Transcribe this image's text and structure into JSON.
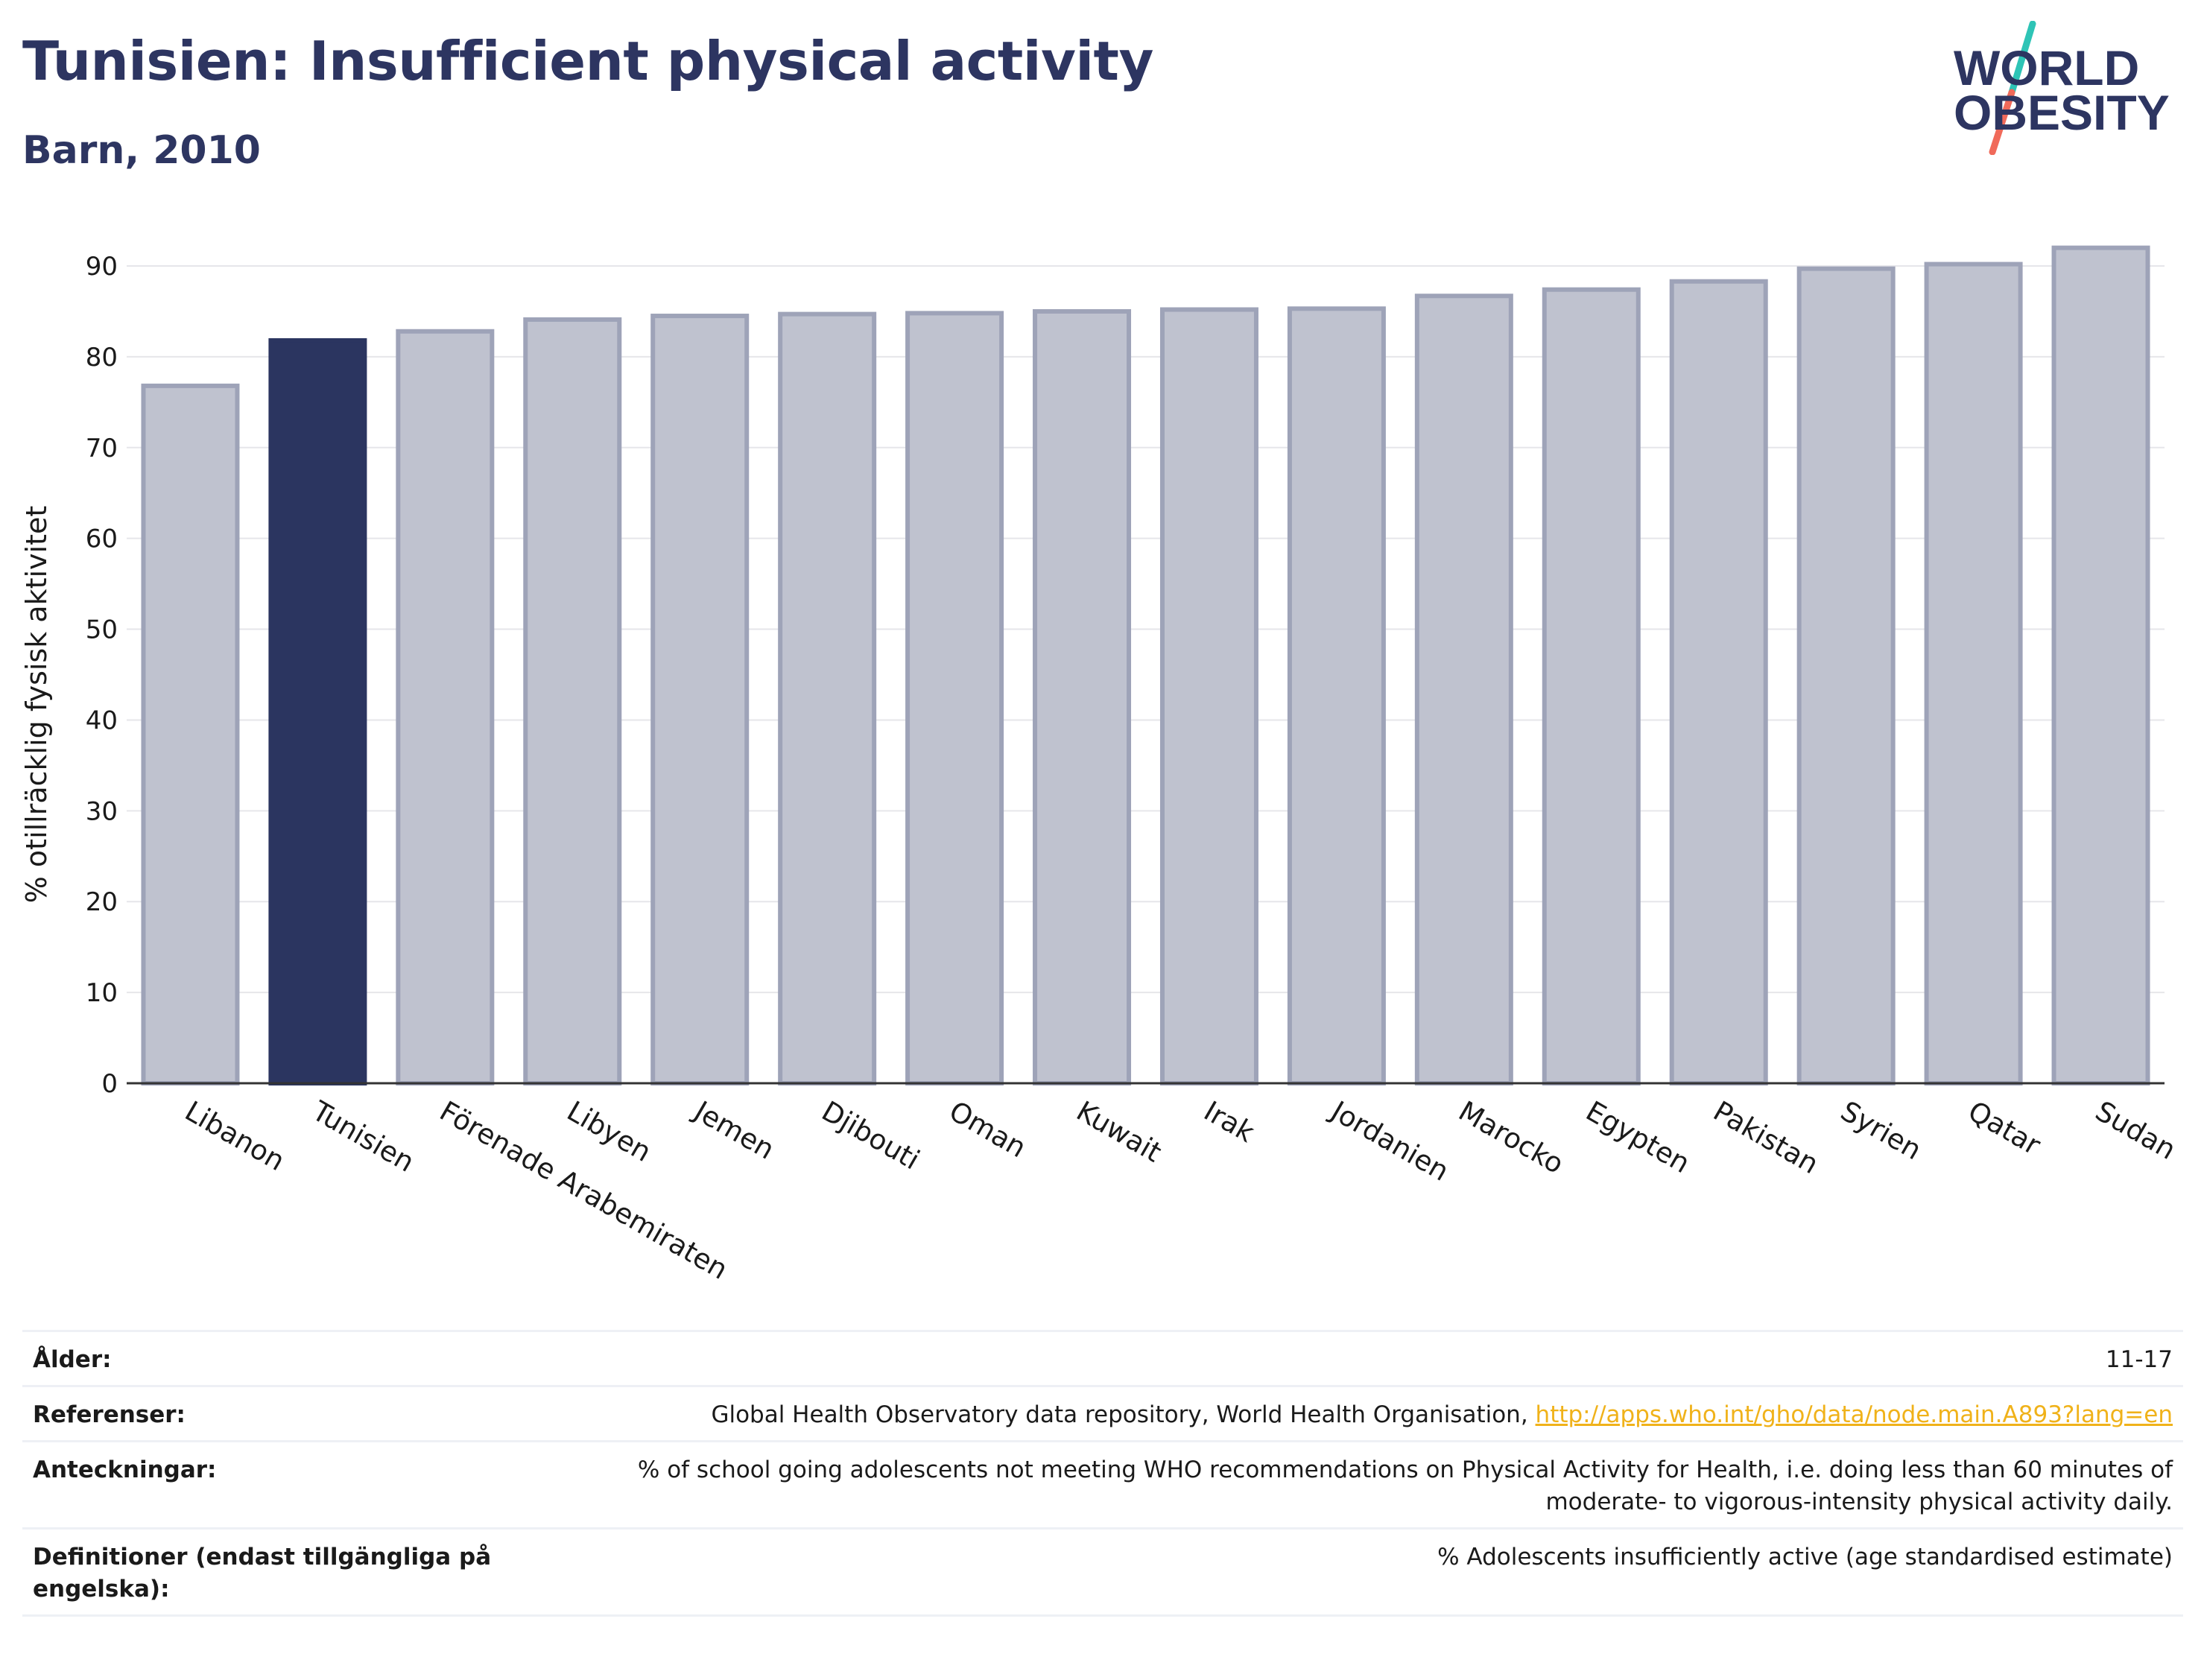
{
  "header": {
    "title": "Tunisien: Insufficient physical activity",
    "subtitle": "Barn, 2010"
  },
  "logo": {
    "line1": "WORLD",
    "line2": "OBESITY",
    "slash_colors": [
      "#2ec4b6",
      "#f06a5a"
    ]
  },
  "colors": {
    "highlight_bar": "#2b3560",
    "other_bar_fill": "#bfc2cf",
    "other_bar_stroke": "#9ea3b8",
    "text": "#2d3561",
    "link": "#f0b21a"
  },
  "chart_data": {
    "type": "bar",
    "title": "Tunisien: Insufficient physical activity",
    "subtitle": "Barn, 2010",
    "xlabel": "",
    "ylabel": "% otillräcklig fysisk aktivitet",
    "ylim": [
      0,
      93
    ],
    "yticks": [
      0,
      10,
      20,
      30,
      40,
      50,
      60,
      70,
      80,
      90
    ],
    "grid": true,
    "highlight": "Tunisien",
    "categories": [
      "Libanon",
      "Tunisien",
      "Förenade Arabemiraten",
      "Libyen",
      "Jemen",
      "Djibouti",
      "Oman",
      "Kuwait",
      "Irak",
      "Jordanien",
      "Marocko",
      "Egypten",
      "Pakistan",
      "Syrien",
      "Qatar",
      "Sudan"
    ],
    "values": [
      76.8,
      81.8,
      82.8,
      84.1,
      84.5,
      84.7,
      84.8,
      85.0,
      85.2,
      85.3,
      86.7,
      87.4,
      88.3,
      89.7,
      90.2,
      92.0
    ]
  },
  "info": [
    {
      "label": "Ålder:",
      "value": "11-17"
    },
    {
      "label": "Referenser:",
      "value": "Global Health Observatory data repository, World Health Organisation, ",
      "link": "http://apps.who.int/gho/data/node.main.A893?lang=en"
    },
    {
      "label": "Anteckningar:",
      "value": "% of school going adolescents not meeting WHO recommendations on Physical Activity for Health, i.e. doing less than 60 minutes of moderate- to vigorous-intensity physical activity daily."
    },
    {
      "label": "Definitioner (endast tillgängliga på engelska):",
      "value": "% Adolescents insufficiently active (age standardised estimate)"
    }
  ]
}
